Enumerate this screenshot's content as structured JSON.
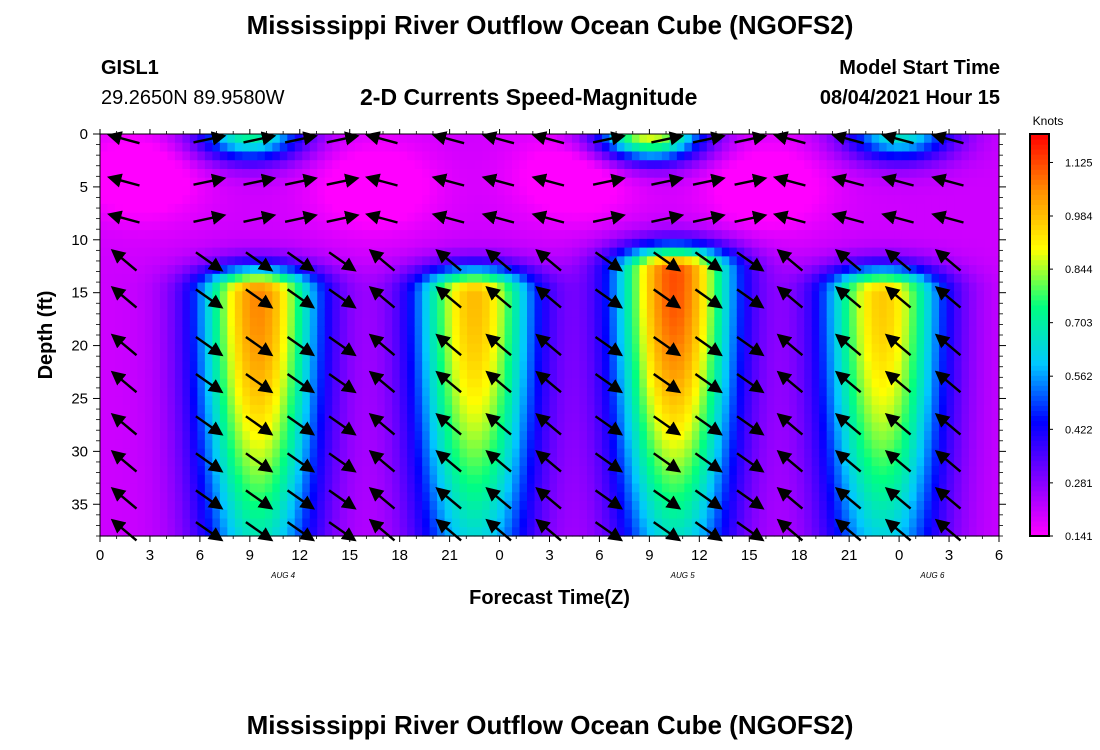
{
  "header": {
    "title": "Mississippi River Outflow Ocean Cube (NGOFS2)",
    "station_id": "GISL1",
    "station_coords": "29.2650N  89.9580W",
    "plot_title": "2-D Currents Speed-Magnitude",
    "model_start_label": "Model Start Time",
    "model_start_value": "08/04/2021 Hour 15"
  },
  "footer": {
    "title": "Mississippi River Outflow Ocean Cube (NGOFS2)"
  },
  "chart_data": {
    "type": "heatmap",
    "xlabel": "Forecast Time(Z)",
    "ylabel": "Depth (ft)",
    "x_ticks": [
      "0",
      "3",
      "6",
      "9",
      "12",
      "15",
      "18",
      "21",
      "0",
      "3",
      "6",
      "9",
      "12",
      "15",
      "18",
      "21",
      "0",
      "3",
      "6"
    ],
    "x_range_hours": [
      0,
      54
    ],
    "date_labels": [
      {
        "text": "AUG 4",
        "hour": 11
      },
      {
        "text": "AUG 5",
        "hour": 35
      },
      {
        "text": "AUG 6",
        "hour": 50
      }
    ],
    "y_ticks": [
      0,
      5,
      10,
      15,
      20,
      25,
      30,
      35
    ],
    "ylim": [
      0,
      38
    ],
    "y_inverted": true,
    "colorbar": {
      "unit": "Knots",
      "tick_values": [
        0.141,
        0.281,
        0.422,
        0.562,
        0.703,
        0.844,
        0.984,
        1.125
      ],
      "tick_labels": [
        "0.141",
        "0.281",
        "0.422",
        "0.562",
        "0.703",
        "0.844",
        "0.984",
        "1.125"
      ],
      "range": [
        0.141,
        1.2
      ],
      "colors": [
        "#ff00ff",
        "#8000ff",
        "#0000ff",
        "#00c8ff",
        "#00ff80",
        "#ffff00",
        "#ff9000",
        "#ff0000"
      ]
    },
    "peaks": [
      {
        "hour": 9.5,
        "depth": 15,
        "speed": 1.06
      },
      {
        "hour": 22.5,
        "depth": 15,
        "speed": 0.99
      },
      {
        "hour": 34.5,
        "depth": 13,
        "speed": 1.12
      },
      {
        "hour": 47,
        "depth": 15,
        "speed": 0.97
      }
    ],
    "surface_peaks": [
      {
        "hour": 9,
        "depth": 0,
        "speed": 0.78
      },
      {
        "hour": 33,
        "depth": 0,
        "speed": 0.95
      },
      {
        "hour": 48,
        "depth": 0,
        "speed": 0.72
      }
    ],
    "arrow_columns_hours": [
      1.5,
      6.5,
      9.5,
      12,
      14.5,
      17,
      21,
      24,
      27,
      30.5,
      34,
      36.5,
      39,
      41.5,
      45,
      48,
      51
    ],
    "arrow_rows_ft": [
      0.5,
      4.5,
      8,
      12,
      15.5,
      20,
      23.5,
      27.5,
      31,
      34.5,
      37.5
    ]
  }
}
